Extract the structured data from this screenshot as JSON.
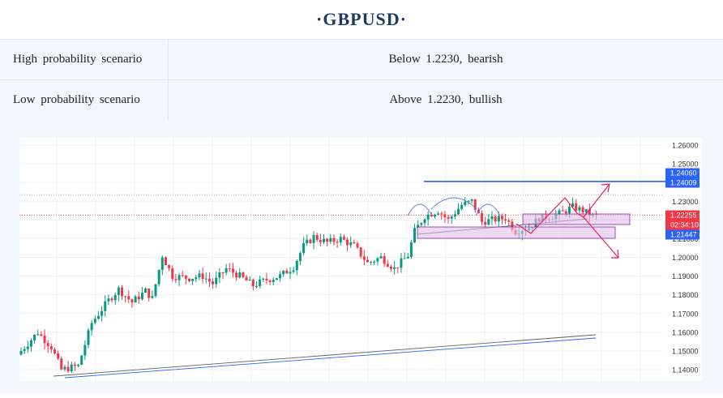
{
  "header": {
    "title": "·GBPUSD·"
  },
  "scenarios": [
    {
      "label": "High probability scenario",
      "value": "Below 1.2230, bearish"
    },
    {
      "label": "Low probability scenario",
      "value": "Above 1.2230, bullish"
    }
  ],
  "chart_data": {
    "type": "candlestick",
    "symbol": "GBPUSD",
    "y_ticks": [
      "1.26000",
      "1.25000",
      "1.24000",
      "1.23000",
      "1.22000",
      "1.21000",
      "1.20000",
      "1.19000",
      "1.18000",
      "1.17000",
      "1.16000",
      "1.15000",
      "1.14000"
    ],
    "ylim": [
      1.136,
      1.262
    ],
    "price_labels": [
      {
        "value": "1.24060",
        "bg": "#2962ff"
      },
      {
        "value": "1.24009",
        "bg": "#2962ff"
      },
      {
        "value": "1.22255",
        "bg": "#f23645"
      },
      {
        "value": "02:34:10",
        "bg": "#f23645"
      },
      {
        "value": "1.21447",
        "bg": "#2962ff"
      }
    ],
    "levels": {
      "resistance": 1.2406,
      "current": 1.2226,
      "dotted_gray": 1.2335
    },
    "colors": {
      "up": "#089981",
      "down": "#f23645",
      "resistance": "#2962ff",
      "arrows": "#e91e63",
      "zone": "#e1bee7"
    }
  }
}
